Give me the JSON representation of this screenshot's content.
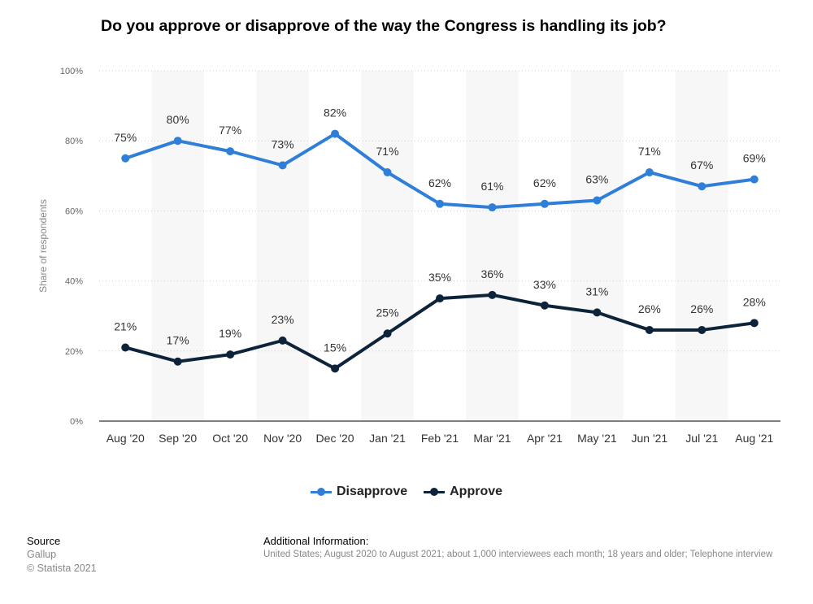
{
  "chart_data": {
    "type": "line",
    "title": "Do you approve or disapprove of the way the Congress is handling its job?",
    "ylabel": "Share of respondents",
    "xlabel": "",
    "ylim": [
      0,
      100
    ],
    "yticks": [
      "0%",
      "20%",
      "40%",
      "60%",
      "80%",
      "100%"
    ],
    "ytick_values": [
      0,
      20,
      40,
      60,
      80,
      100
    ],
    "categories": [
      "Aug '20",
      "Sep '20",
      "Oct '20",
      "Nov '20",
      "Dec '20",
      "Jan '21",
      "Feb '21",
      "Mar '21",
      "Apr '21",
      "May '21",
      "Jun '21",
      "Jul '21",
      "Aug '21"
    ],
    "series": [
      {
        "name": "Disapprove",
        "color": "#2f7ed8",
        "values": [
          75,
          80,
          77,
          73,
          82,
          71,
          62,
          61,
          62,
          63,
          71,
          67,
          69
        ],
        "labels": [
          "75%",
          "80%",
          "77%",
          "73%",
          "82%",
          "71%",
          "62%",
          "61%",
          "62%",
          "63%",
          "71%",
          "67%",
          "69%"
        ]
      },
      {
        "name": "Approve",
        "color": "#0d233a",
        "values": [
          21,
          17,
          19,
          23,
          15,
          25,
          35,
          36,
          33,
          31,
          26,
          26,
          28
        ],
        "labels": [
          "21%",
          "17%",
          "19%",
          "23%",
          "15%",
          "25%",
          "35%",
          "36%",
          "33%",
          "31%",
          "26%",
          "26%",
          "28%"
        ]
      }
    ],
    "grid": true,
    "legend_position": "bottom-center"
  },
  "footer": {
    "source_heading": "Source",
    "source_name": "Gallup",
    "copyright": "© Statista 2021",
    "info_heading": "Additional Information:",
    "info_text": "United States; August 2020 to August 2021; about 1,000 interviewees each month; 18 years and older; Telephone interview"
  }
}
